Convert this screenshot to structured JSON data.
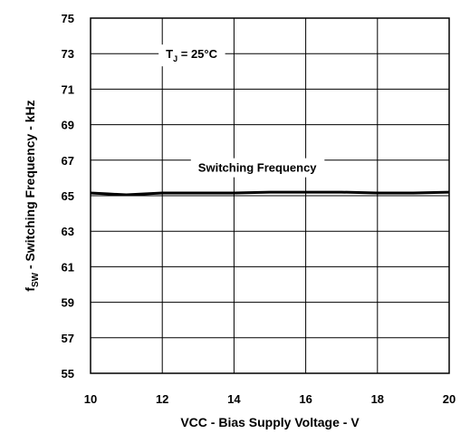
{
  "chart_data": {
    "type": "line",
    "xlabel": "VCC - Bias Supply Voltage - V",
    "ylabel": {
      "main": "f",
      "sub": "SW",
      "rest": " - Switching Frequency - kHz"
    },
    "xlim": [
      10,
      20
    ],
    "ylim": [
      55,
      75
    ],
    "x_ticks": [
      "10",
      "12",
      "14",
      "16",
      "18",
      "20"
    ],
    "y_ticks": [
      "55",
      "57",
      "59",
      "61",
      "63",
      "65",
      "67",
      "69",
      "71",
      "73",
      "75"
    ],
    "x_tick_values": [
      10,
      12,
      14,
      16,
      18,
      20
    ],
    "y_tick_values": [
      55,
      57,
      59,
      61,
      63,
      65,
      67,
      69,
      71,
      73,
      75
    ],
    "grid": true,
    "annotations": [
      {
        "text_main": "T",
        "text_sub": "J",
        "text_rest": " = 25°C",
        "x": 12.1,
        "y": 73
      },
      {
        "text": "Switching Frequency",
        "x": 13.0,
        "y": 66.6
      }
    ],
    "series": [
      {
        "name": "Switching Frequency",
        "color": "#000000",
        "x": [
          10,
          10.5,
          11,
          11.5,
          12,
          13,
          14,
          15,
          16,
          17,
          18,
          19,
          20
        ],
        "y": [
          65.15,
          65.1,
          65.05,
          65.1,
          65.15,
          65.15,
          65.15,
          65.2,
          65.2,
          65.2,
          65.15,
          65.15,
          65.2
        ]
      }
    ]
  }
}
